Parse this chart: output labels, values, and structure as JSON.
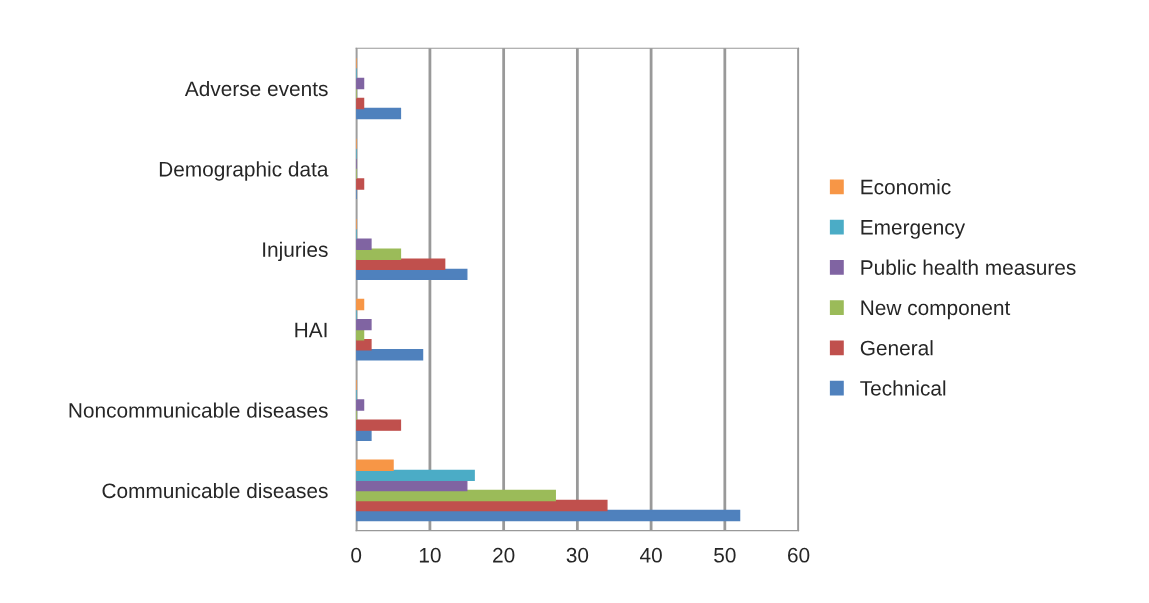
{
  "chart_data": {
    "type": "bar",
    "orientation": "horizontal",
    "categories": [
      "Adverse events",
      "Demographic data",
      "Injuries",
      "HAI",
      "Noncommunicable diseases",
      "Communicable diseases"
    ],
    "series": [
      {
        "name": "Technical",
        "color": "#4f81bd",
        "values": [
          6,
          0,
          15,
          9,
          2,
          52
        ]
      },
      {
        "name": "General",
        "color": "#c0504d",
        "values": [
          1,
          1,
          12,
          2,
          6,
          34
        ]
      },
      {
        "name": "New component",
        "color": "#9bbb59",
        "values": [
          0,
          0,
          6,
          1,
          0,
          27
        ]
      },
      {
        "name": "Public health measures",
        "color": "#8064a2",
        "values": [
          1,
          0,
          2,
          2,
          1,
          15
        ]
      },
      {
        "name": "Emergency",
        "color": "#4bacc6",
        "values": [
          0,
          0,
          0,
          0,
          0,
          16
        ]
      },
      {
        "name": "Economic",
        "color": "#f79646",
        "values": [
          0,
          0,
          0,
          1,
          0,
          5
        ]
      }
    ],
    "xlim": [
      0,
      60
    ],
    "xticks": [
      0,
      10,
      20,
      30,
      40,
      50,
      60
    ],
    "grid": "x",
    "legend": "right"
  }
}
